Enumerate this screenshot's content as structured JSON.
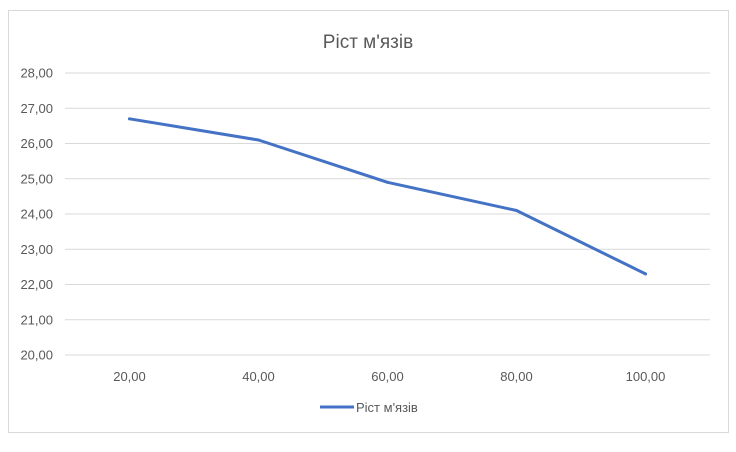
{
  "chart_data": {
    "type": "line",
    "title": "Ріст м'язів",
    "xlabel": "",
    "ylabel": "",
    "x": [
      20,
      40,
      60,
      80,
      100
    ],
    "x_tick_labels": [
      "20,00",
      "40,00",
      "60,00",
      "80,00",
      "100,00"
    ],
    "ylim": [
      20,
      28
    ],
    "y_tick_labels": [
      "20,00",
      "21,00",
      "22,00",
      "23,00",
      "24,00",
      "25,00",
      "26,00",
      "27,00",
      "28,00"
    ],
    "series": [
      {
        "name": "Ріст м'язів",
        "values": [
          26.7,
          26.1,
          24.9,
          24.1,
          22.3
        ],
        "color": "#4472c4"
      }
    ],
    "grid": true,
    "legend_position": "bottom",
    "gridline_color": "#d9d9d9"
  }
}
